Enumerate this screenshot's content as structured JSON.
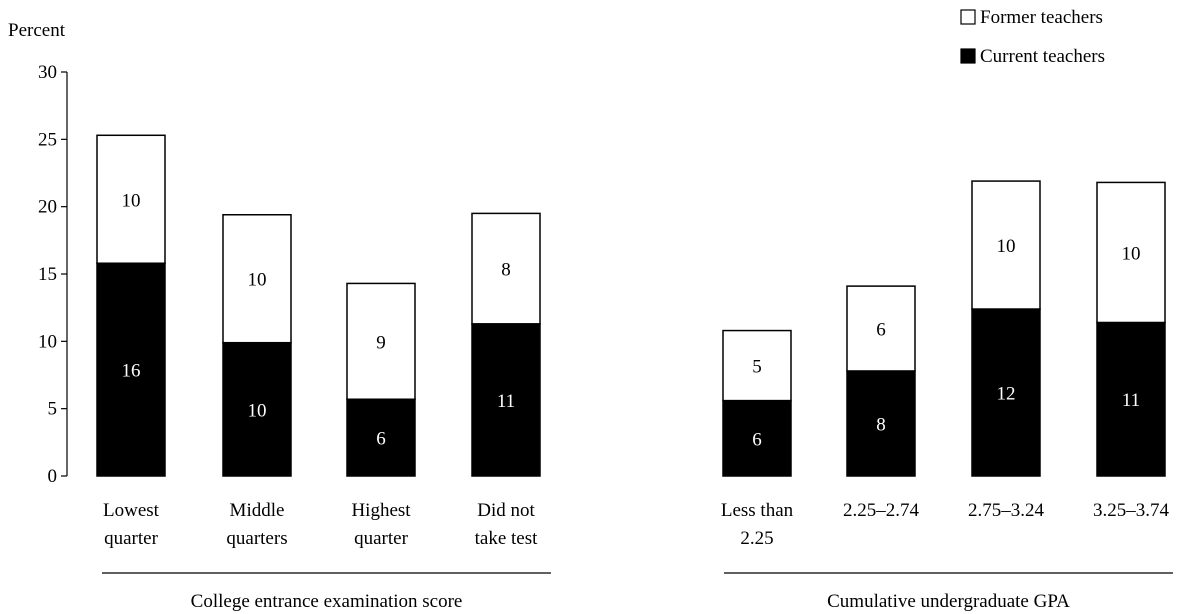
{
  "chart_data": {
    "type": "bar",
    "stacked": true,
    "ylabel": "Percent",
    "ylim": [
      0,
      30
    ],
    "yticks": [
      0,
      5,
      10,
      15,
      20,
      25,
      30
    ],
    "grid": false,
    "legend_position": "top-right",
    "legend": [
      {
        "name": "Former teachers",
        "color": "#ffffff"
      },
      {
        "name": "Current teachers",
        "color": "#000000"
      }
    ],
    "groups": [
      {
        "label": "College entrance examination score",
        "categories": [
          [
            "Lowest",
            "quarter"
          ],
          [
            "Middle",
            "quarters"
          ],
          [
            "Highest",
            "quarter"
          ],
          [
            "Did not",
            "take test"
          ]
        ],
        "current": [
          15.8,
          9.9,
          5.7,
          11.3
        ],
        "former": [
          9.5,
          9.5,
          8.6,
          8.2
        ],
        "current_labels": [
          "16",
          "10",
          "6",
          "11"
        ],
        "former_labels": [
          "10",
          "10",
          "9",
          "8"
        ]
      },
      {
        "label": "Cumulative undergraduate GPA",
        "categories": [
          [
            "Less than",
            "2.25"
          ],
          [
            "2.25–2.74"
          ],
          [
            "2.75–3.24"
          ],
          [
            "3.25–3.74"
          ]
        ],
        "current": [
          5.6,
          7.8,
          12.4,
          11.4
        ],
        "former": [
          5.2,
          6.3,
          9.5,
          10.4
        ],
        "current_labels": [
          "6",
          "8",
          "12",
          "11"
        ],
        "former_labels": [
          "5",
          "6",
          "10",
          "10"
        ]
      }
    ]
  }
}
